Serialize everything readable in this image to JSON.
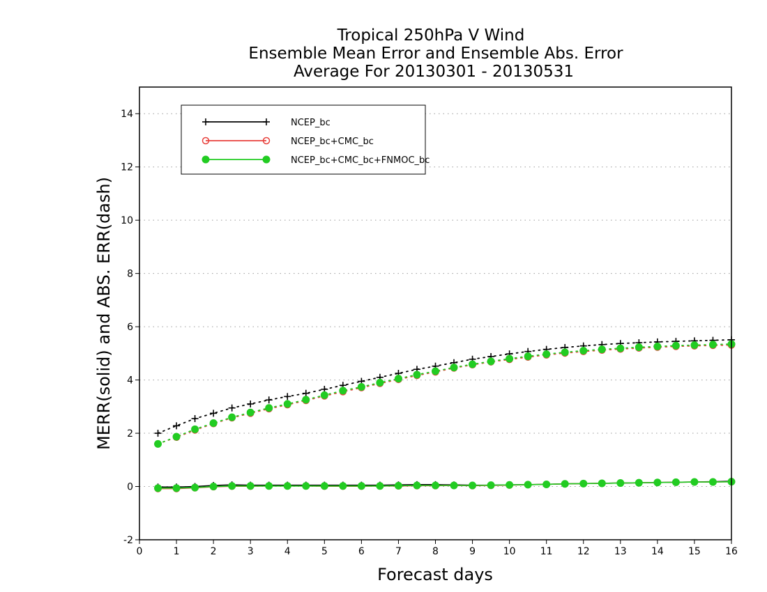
{
  "chart_data": {
    "type": "line",
    "title": [
      "Tropical 250hPa V Wind",
      "Ensemble Mean Error and Ensemble Abs. Error",
      "Average For 20130301 - 20130531"
    ],
    "xlabel": "Forecast days",
    "ylabel": "MERR(solid) and ABS. ERR(dash)",
    "xlim": [
      0,
      16
    ],
    "ylim": [
      -2,
      15
    ],
    "xticks": [
      0,
      1,
      2,
      3,
      4,
      5,
      6,
      7,
      8,
      9,
      10,
      11,
      12,
      13,
      14,
      15,
      16
    ],
    "yticks": [
      -2,
      0,
      2,
      4,
      6,
      8,
      10,
      12,
      14
    ],
    "grid": "horizontal dotted",
    "legend_position": "top-left",
    "x": [
      0.5,
      1,
      1.5,
      2,
      2.5,
      3,
      3.5,
      4,
      4.5,
      5,
      5.5,
      6,
      6.5,
      7,
      7.5,
      8,
      8.5,
      9,
      9.5,
      10,
      10.5,
      11,
      11.5,
      12,
      12.5,
      13,
      13.5,
      14,
      14.5,
      15,
      15.5,
      16
    ],
    "series": [
      {
        "name": "NCEP_bc",
        "color": "#000000",
        "marker": "plus",
        "abs_err": [
          2.0,
          2.28,
          2.55,
          2.75,
          2.95,
          3.1,
          3.25,
          3.38,
          3.5,
          3.65,
          3.8,
          3.95,
          4.1,
          4.25,
          4.4,
          4.52,
          4.65,
          4.78,
          4.88,
          4.98,
          5.07,
          5.15,
          5.22,
          5.28,
          5.33,
          5.37,
          5.4,
          5.43,
          5.45,
          5.47,
          5.49,
          5.51
        ],
        "mean_err": [
          -0.02,
          -0.02,
          0.0,
          0.04,
          0.06,
          0.05,
          0.05,
          0.05,
          0.05,
          0.05,
          0.05,
          0.05,
          0.05,
          0.06,
          0.07,
          0.07,
          0.06,
          0.05,
          0.05,
          0.06,
          0.07,
          0.08,
          0.1,
          0.11,
          0.12,
          0.13,
          0.14,
          0.15,
          0.16,
          0.17,
          0.18,
          0.2
        ]
      },
      {
        "name": "NCEP_bc+CMC_bc",
        "color": "#e8413c",
        "marker": "open-circle",
        "abs_err": [
          1.6,
          1.85,
          2.12,
          2.36,
          2.58,
          2.75,
          2.92,
          3.07,
          3.23,
          3.4,
          3.56,
          3.71,
          3.87,
          4.02,
          4.17,
          4.3,
          4.45,
          4.57,
          4.68,
          4.77,
          4.86,
          4.94,
          5.01,
          5.07,
          5.12,
          5.16,
          5.2,
          5.23,
          5.26,
          5.28,
          5.3,
          5.31
        ],
        "mean_err": [
          -0.08,
          -0.08,
          -0.05,
          -0.01,
          0.01,
          0.01,
          0.02,
          0.02,
          0.02,
          0.01,
          0.01,
          0.01,
          0.02,
          0.02,
          0.03,
          0.03,
          0.04,
          0.03,
          0.04,
          0.05,
          0.07,
          0.08,
          0.1,
          0.11,
          0.12,
          0.13,
          0.14,
          0.15,
          0.16,
          0.17,
          0.17,
          0.18
        ]
      },
      {
        "name": "NCEP_bc+CMC_bc+FNMOC_bc",
        "color": "#22cc22",
        "marker": "filled-circle",
        "abs_err": [
          1.6,
          1.87,
          2.15,
          2.38,
          2.6,
          2.78,
          2.95,
          3.1,
          3.26,
          3.43,
          3.6,
          3.74,
          3.9,
          4.05,
          4.2,
          4.33,
          4.47,
          4.59,
          4.7,
          4.8,
          4.89,
          4.97,
          5.04,
          5.1,
          5.15,
          5.19,
          5.23,
          5.26,
          5.29,
          5.31,
          5.33,
          5.35
        ],
        "mean_err": [
          -0.06,
          -0.06,
          -0.04,
          0.0,
          0.02,
          0.02,
          0.02,
          0.02,
          0.02,
          0.02,
          0.02,
          0.02,
          0.02,
          0.03,
          0.04,
          0.04,
          0.04,
          0.04,
          0.05,
          0.06,
          0.07,
          0.08,
          0.1,
          0.11,
          0.12,
          0.13,
          0.14,
          0.15,
          0.16,
          0.17,
          0.17,
          0.18
        ]
      }
    ]
  }
}
